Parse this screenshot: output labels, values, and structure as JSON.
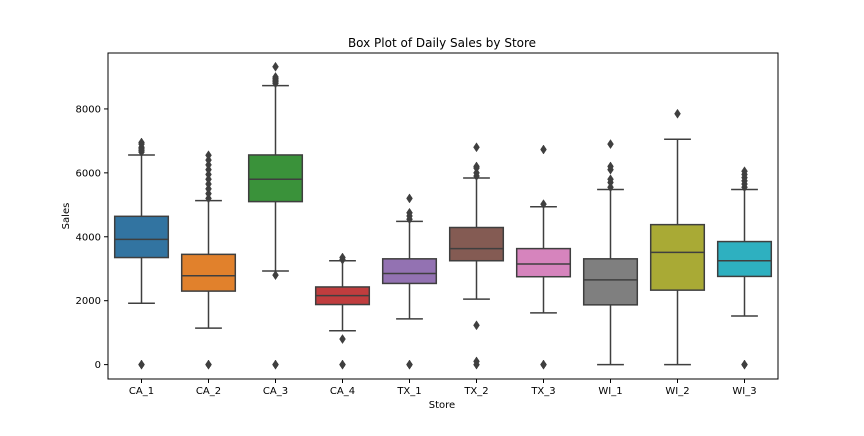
{
  "chart_data": {
    "type": "box",
    "title": "Box Plot of Daily Sales by Store",
    "xlabel": "Store",
    "ylabel": "Sales",
    "ylim": [
      -450,
      9750
    ],
    "yticks": [
      0,
      2000,
      4000,
      6000,
      8000
    ],
    "grid": false,
    "categories": [
      "CA_1",
      "CA_2",
      "CA_3",
      "CA_4",
      "TX_1",
      "TX_2",
      "TX_3",
      "WI_1",
      "WI_2",
      "WI_3"
    ],
    "colors": [
      "#3274a1",
      "#e1812c",
      "#3a923a",
      "#c03d3e",
      "#9372b2",
      "#845b53",
      "#d684bd",
      "#7f7f7f",
      "#a9aa35",
      "#2eb0c0"
    ],
    "boxes": [
      {
        "store": "CA_1",
        "whislo": 1920,
        "q1": 3350,
        "med": 3920,
        "q3": 4640,
        "whishi": 6560,
        "fliers": [
          0,
          0,
          6650,
          6700,
          6750,
          6800,
          6900,
          6950
        ]
      },
      {
        "store": "CA_2",
        "whislo": 1140,
        "q1": 2300,
        "med": 2780,
        "q3": 3450,
        "whishi": 5130,
        "fliers": [
          0,
          0,
          5200,
          5350,
          5500,
          5650,
          5800,
          5950,
          6100,
          6250,
          6400,
          6550
        ]
      },
      {
        "store": "CA_3",
        "whislo": 2930,
        "q1": 5100,
        "med": 5800,
        "q3": 6560,
        "whishi": 8730,
        "fliers": [
          0,
          0,
          2800,
          8800,
          8850,
          8900,
          8950,
          9000,
          9320
        ]
      },
      {
        "store": "CA_4",
        "whislo": 1060,
        "q1": 1880,
        "med": 2160,
        "q3": 2430,
        "whishi": 3250,
        "fliers": [
          0,
          0,
          800,
          3280,
          3350
        ]
      },
      {
        "store": "TX_1",
        "whislo": 1430,
        "q1": 2540,
        "med": 2850,
        "q3": 3310,
        "whishi": 4480,
        "fliers": [
          0,
          0,
          4550,
          4650,
          4750,
          5200
        ]
      },
      {
        "store": "TX_2",
        "whislo": 2050,
        "q1": 3250,
        "med": 3630,
        "q3": 4290,
        "whishi": 5840,
        "fliers": [
          0,
          100,
          1230,
          5900,
          6000,
          6150,
          6200,
          6800
        ]
      },
      {
        "store": "TX_3",
        "whislo": 1620,
        "q1": 2750,
        "med": 3150,
        "q3": 3630,
        "whishi": 4940,
        "fliers": [
          0,
          0,
          5020,
          6730
        ]
      },
      {
        "store": "WI_1",
        "whislo": 0,
        "q1": 1870,
        "med": 2650,
        "q3": 3310,
        "whishi": 5480,
        "fliers": [
          5550,
          5700,
          5800,
          6100,
          6200,
          6900
        ]
      },
      {
        "store": "WI_2",
        "whislo": 0,
        "q1": 2330,
        "med": 3510,
        "q3": 4380,
        "whishi": 7050,
        "fliers": [
          7850
        ]
      },
      {
        "store": "WI_3",
        "whislo": 1520,
        "q1": 2760,
        "med": 3250,
        "q3": 3850,
        "whishi": 5480,
        "fliers": [
          0,
          0,
          5550,
          5650,
          5750,
          5850,
          5950,
          6050
        ]
      }
    ]
  }
}
